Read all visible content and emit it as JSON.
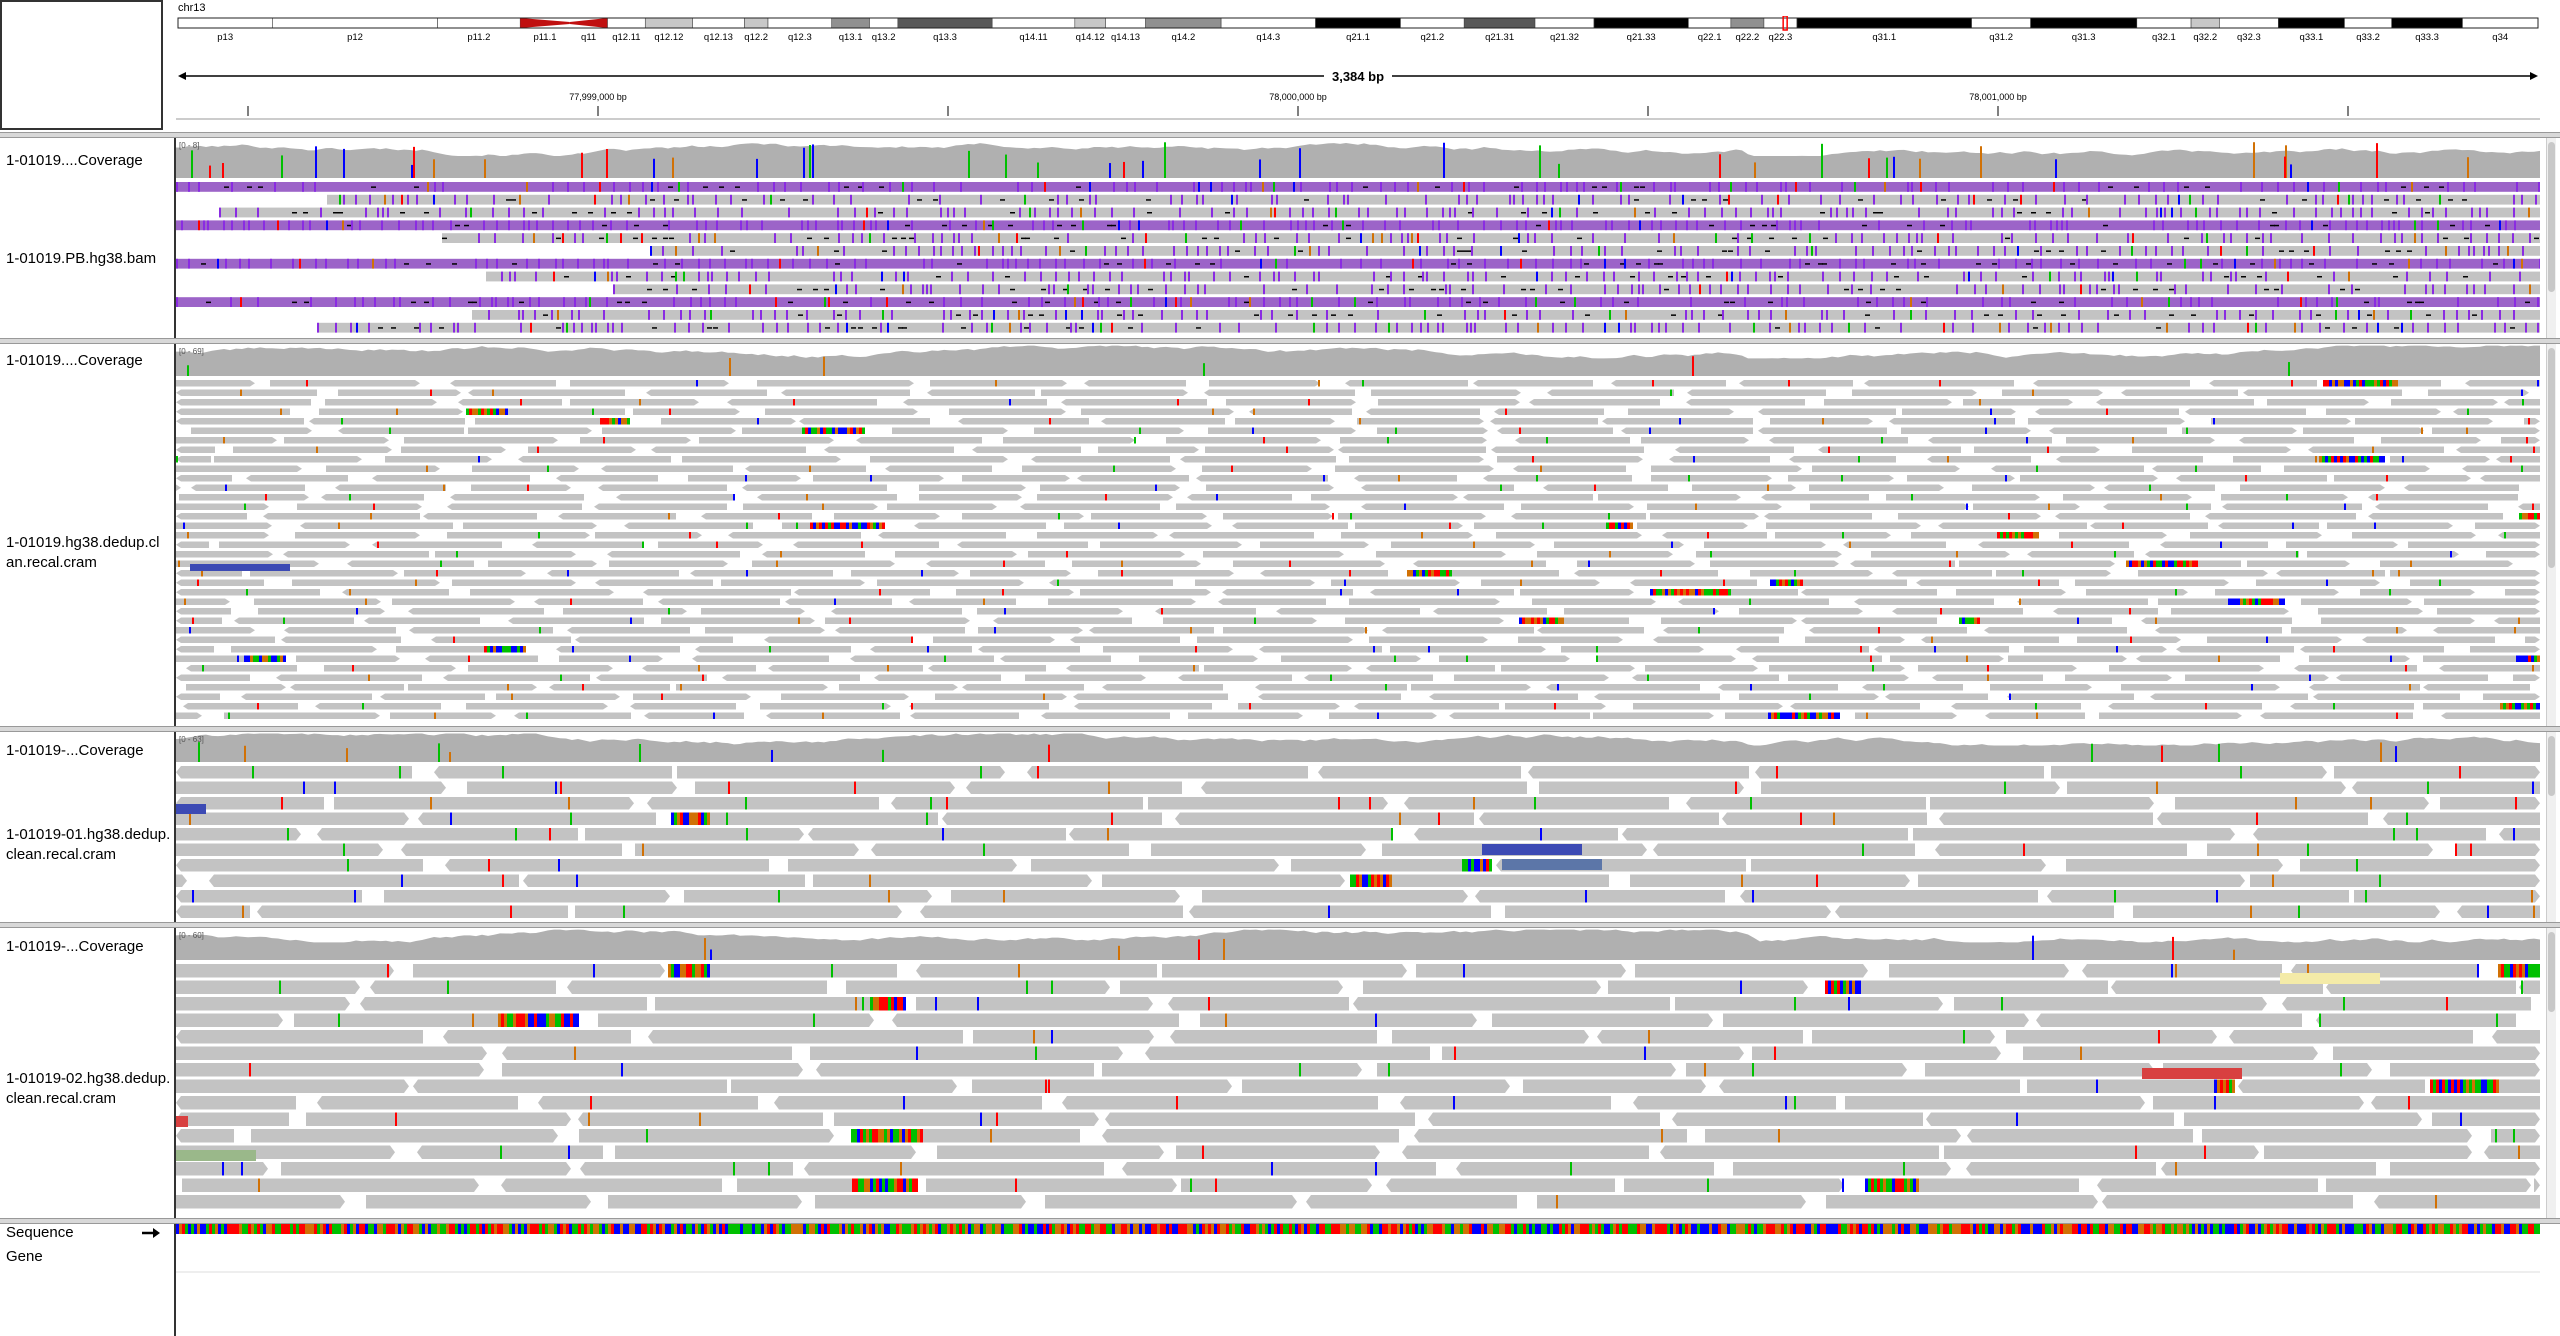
{
  "header": {
    "chromosome": "chr13",
    "span_label": "3,384 bp",
    "position_ticks": [
      "77,999,000 bp",
      "78,000,000 bp",
      "78,001,000 bp"
    ],
    "bands": [
      {
        "name": "p13",
        "start": 0.0,
        "end": 0.04,
        "stain": "gneg"
      },
      {
        "name": "p12",
        "start": 0.04,
        "end": 0.11,
        "stain": "gneg"
      },
      {
        "name": "p11.2",
        "start": 0.11,
        "end": 0.145,
        "stain": "gneg"
      },
      {
        "name": "p11.1",
        "start": 0.145,
        "end": 0.166,
        "stain": "acen"
      },
      {
        "name": "q11",
        "start": 0.166,
        "end": 0.182,
        "stain": "acen"
      },
      {
        "name": "q12.11",
        "start": 0.182,
        "end": 0.198,
        "stain": "gneg"
      },
      {
        "name": "q12.12",
        "start": 0.198,
        "end": 0.218,
        "stain": "gpos25"
      },
      {
        "name": "q12.13",
        "start": 0.218,
        "end": 0.24,
        "stain": "gneg"
      },
      {
        "name": "q12.2",
        "start": 0.24,
        "end": 0.25,
        "stain": "gpos25"
      },
      {
        "name": "q12.3",
        "start": 0.25,
        "end": 0.277,
        "stain": "gneg"
      },
      {
        "name": "q13.1",
        "start": 0.277,
        "end": 0.293,
        "stain": "gpos50"
      },
      {
        "name": "q13.2",
        "start": 0.293,
        "end": 0.305,
        "stain": "gneg"
      },
      {
        "name": "q13.3",
        "start": 0.305,
        "end": 0.345,
        "stain": "gpos75"
      },
      {
        "name": "q14.11",
        "start": 0.345,
        "end": 0.38,
        "stain": "gneg"
      },
      {
        "name": "q14.12",
        "start": 0.38,
        "end": 0.393,
        "stain": "gpos25"
      },
      {
        "name": "q14.13",
        "start": 0.393,
        "end": 0.41,
        "stain": "gneg"
      },
      {
        "name": "q14.2",
        "start": 0.41,
        "end": 0.442,
        "stain": "gpos50"
      },
      {
        "name": "q14.3",
        "start": 0.442,
        "end": 0.482,
        "stain": "gneg"
      },
      {
        "name": "q21.1",
        "start": 0.482,
        "end": 0.518,
        "stain": "gpos100"
      },
      {
        "name": "q21.2",
        "start": 0.518,
        "end": 0.545,
        "stain": "gneg"
      },
      {
        "name": "q21.31",
        "start": 0.545,
        "end": 0.575,
        "stain": "gpos75"
      },
      {
        "name": "q21.32",
        "start": 0.575,
        "end": 0.6,
        "stain": "gneg"
      },
      {
        "name": "q21.33",
        "start": 0.6,
        "end": 0.64,
        "stain": "gpos100"
      },
      {
        "name": "q22.1",
        "start": 0.64,
        "end": 0.658,
        "stain": "gneg"
      },
      {
        "name": "q22.2",
        "start": 0.658,
        "end": 0.672,
        "stain": "gpos50"
      },
      {
        "name": "q22.3",
        "start": 0.672,
        "end": 0.686,
        "stain": "gneg"
      },
      {
        "name": "q31.1",
        "start": 0.686,
        "end": 0.76,
        "stain": "gpos100"
      },
      {
        "name": "q31.2",
        "start": 0.76,
        "end": 0.785,
        "stain": "gneg"
      },
      {
        "name": "q31.3",
        "start": 0.785,
        "end": 0.83,
        "stain": "gpos100"
      },
      {
        "name": "q32.1",
        "start": 0.83,
        "end": 0.853,
        "stain": "gneg"
      },
      {
        "name": "q32.2",
        "start": 0.853,
        "end": 0.865,
        "stain": "gpos25"
      },
      {
        "name": "q32.3",
        "start": 0.865,
        "end": 0.89,
        "stain": "gneg"
      },
      {
        "name": "q33.1",
        "start": 0.89,
        "end": 0.918,
        "stain": "gpos100"
      },
      {
        "name": "q33.2",
        "start": 0.918,
        "end": 0.938,
        "stain": "gneg"
      },
      {
        "name": "q33.3",
        "start": 0.938,
        "end": 0.968,
        "stain": "gpos100"
      },
      {
        "name": "q34",
        "start": 0.968,
        "end": 1.0,
        "stain": "gneg"
      }
    ],
    "current_region": 0.681
  },
  "panels": [
    {
      "id": "pb",
      "coverage_label": "1-01019....Coverage",
      "alignment_label": [
        "1-01019.PB.hg38.bam"
      ],
      "coverage_range": "[0 - 8]",
      "read_style": "pacbio",
      "seed": 11
    },
    {
      "id": "dedup",
      "coverage_label": "1-01019....Coverage",
      "alignment_label": [
        "1-01019.hg38.dedup.cl",
        "an.recal.cram"
      ],
      "coverage_range": "[0 - 69]",
      "read_style": "short",
      "seed": 23
    },
    {
      "id": "s01",
      "coverage_label": "1-01019-...Coverage",
      "alignment_label": [
        "1-01019-01.hg38.dedup.",
        "clean.recal.cram"
      ],
      "coverage_range": "[0 - 63]",
      "read_style": "long",
      "seed": 37
    },
    {
      "id": "s02",
      "coverage_label": "1-01019-...Coverage",
      "alignment_label": [
        "1-01019-02.hg38.dedup.",
        "clean.recal.cram"
      ],
      "coverage_range": "[0 - 60]",
      "read_style": "long",
      "seed": 51
    }
  ],
  "feature_tracks": {
    "sequence_label": "Sequence",
    "strand_icon": "right-arrow-icon",
    "gene_label": "Gene"
  },
  "colors": {
    "read_gray": "#c3c3c3",
    "coverage_gray": "#b0b0b0",
    "base_A": "#00c000",
    "base_C": "#0000ff",
    "base_G": "#d17105",
    "base_T": "#ff0000",
    "insertion": "#8a2be2",
    "pacbio_read": "#9c64c8",
    "soft_clip_blue": "#3c4ab4",
    "soft_clip_red": "#d84040",
    "soft_clip_yellow": "#f4eba8",
    "soft_clip_sage": "#9ab88a"
  }
}
